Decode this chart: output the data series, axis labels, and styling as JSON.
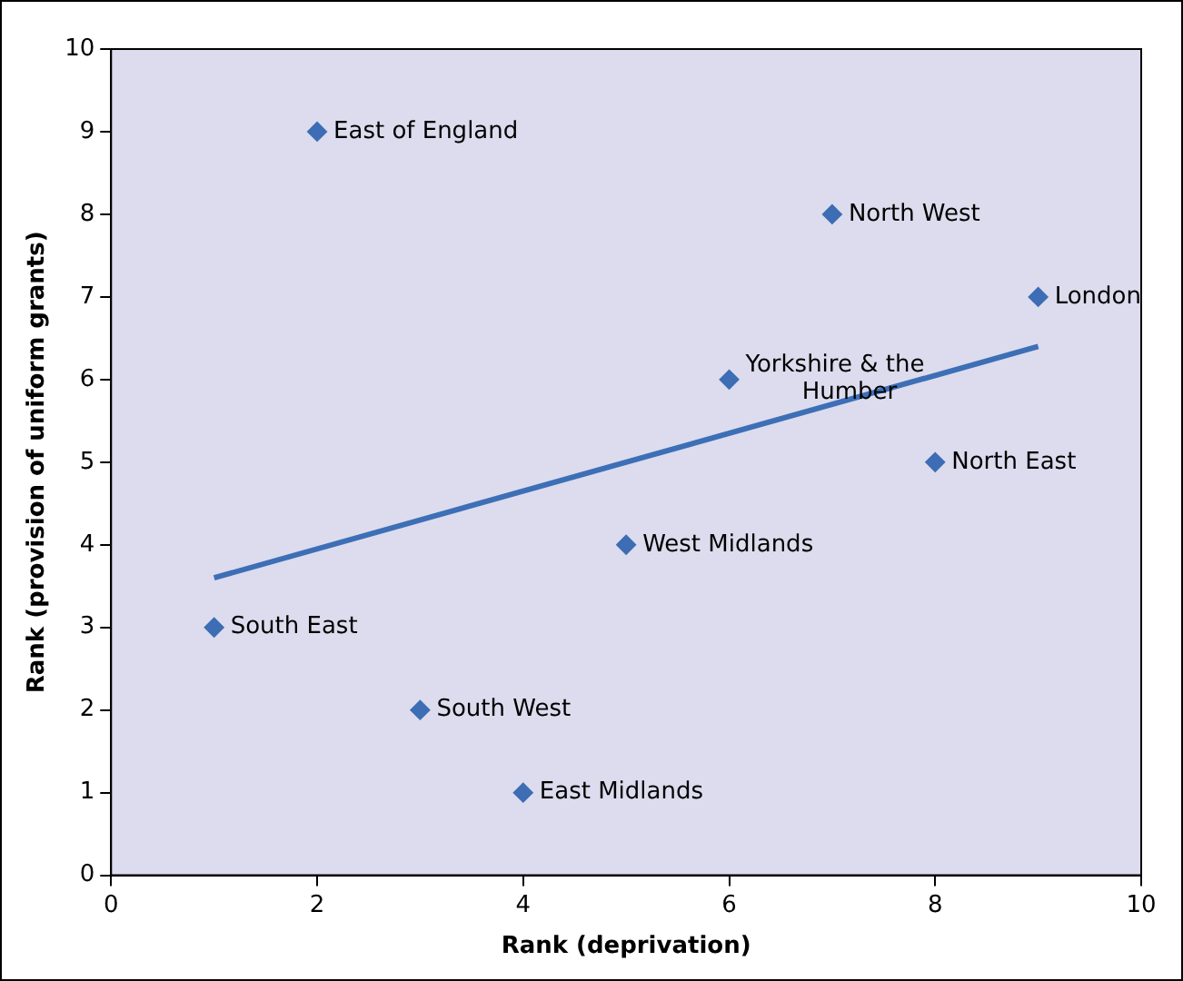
{
  "chart_data": {
    "type": "scatter",
    "xlabel": "Rank (deprivation)",
    "ylabel": "Rank (provision of uniform grants)",
    "series": [
      {
        "color": "#3d6db4",
        "x": [
          1,
          2,
          3,
          4,
          5,
          6,
          7,
          8,
          9
        ],
        "values": [
          3,
          9,
          2,
          1,
          4,
          6,
          8,
          5,
          7
        ]
      },
      {
        "type": "line",
        "marker": "none",
        "color": "#3d6fb6",
        "x": [
          1,
          9
        ],
        "values": [
          3.6,
          6.4
        ]
      }
    ],
    "annotations": [
      {
        "text": "South East",
        "x": 1,
        "y": 3
      },
      {
        "text": "East of England",
        "x": 2,
        "y": 9
      },
      {
        "text": "South West",
        "x": 3,
        "y": 2
      },
      {
        "text": "East Midlands",
        "x": 4,
        "y": 1
      },
      {
        "text": "West Midlands",
        "x": 5,
        "y": 4
      },
      {
        "text": "Yorkshire & the Humber",
        "x": 6,
        "y": 6
      },
      {
        "text": "North West",
        "x": 7,
        "y": 8
      },
      {
        "text": "North East",
        "x": 8,
        "y": 5
      },
      {
        "text": "London",
        "x": 9,
        "y": 7
      }
    ],
    "xlim": [
      0,
      10
    ],
    "xticks": [
      0,
      2,
      4,
      6,
      8,
      10
    ],
    "ylim": [
      0,
      10
    ],
    "yticks": [
      0,
      1,
      2,
      3,
      4,
      5,
      6,
      7,
      8,
      9,
      10
    ],
    "marker": "diamond",
    "grid": false,
    "legend": false
  }
}
